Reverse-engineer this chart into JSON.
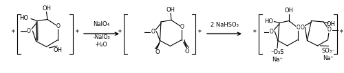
{
  "figsize": [
    5.0,
    1.07
  ],
  "dpi": 100,
  "background_color": "#ffffff",
  "reagent1_line1": "NaIO₄",
  "reagent1_line2": "-NaIO₃",
  "reagent1_line3": "-H₂O",
  "reagent2": "2 NaHSO₃",
  "xlim": [
    0,
    10
  ],
  "ylim": [
    0,
    2.14
  ],
  "lw": 0.8,
  "fs": 6.0
}
